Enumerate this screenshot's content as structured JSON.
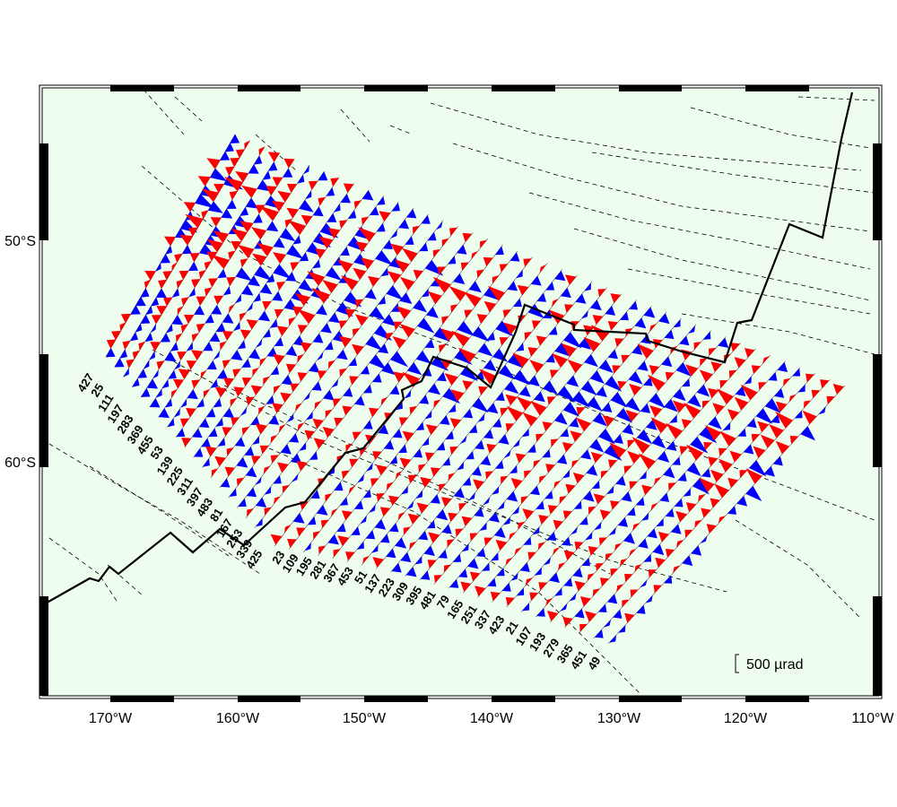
{
  "colors": {
    "map_background": "#effdef",
    "positive_anomaly": "#ff0000",
    "negative_anomaly": "#0000ff",
    "ridge_line": "#000000",
    "fracture_zone": "#000000"
  },
  "axes": {
    "lon_ticks": [
      "170°W",
      "160°W",
      "150°W",
      "140°W",
      "130°W",
      "120°W",
      "110°W"
    ],
    "lat_ticks": [
      "50°S",
      "60°S"
    ]
  },
  "scale_bar": {
    "label": "500 µrad"
  },
  "track_labels": {
    "set_a": [
      "427",
      "25",
      "111",
      "197",
      "283",
      "369",
      "455",
      "53",
      "139",
      "225",
      "311",
      "397",
      "483",
      "81",
      "167",
      "253",
      "339",
      "425"
    ],
    "set_b": [
      "23",
      "109",
      "195",
      "281",
      "367",
      "453",
      "51",
      "137",
      "223",
      "309",
      "395",
      "481",
      "79",
      "165",
      "251",
      "337",
      "423",
      "21",
      "107",
      "193",
      "279",
      "365",
      "451",
      "49"
    ]
  }
}
